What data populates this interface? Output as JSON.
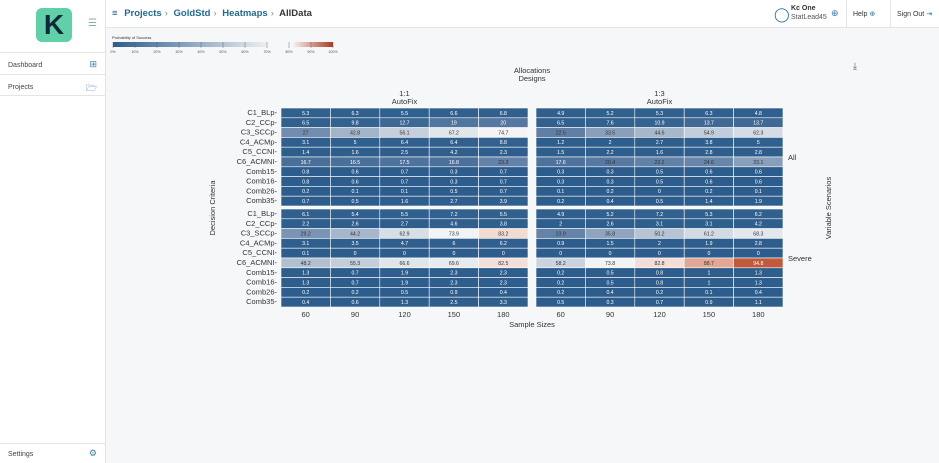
{
  "sidebar": {
    "logo": "K",
    "items": [
      {
        "label": "Dashboard",
        "icon": "grid-icon"
      },
      {
        "label": "Projects",
        "icon": "folder-icon"
      }
    ],
    "settings": "Settings"
  },
  "header": {
    "breadcrumb": [
      "Projects",
      "GoldStd",
      "Heatmaps",
      "AllData"
    ],
    "user_name": "Kc One",
    "user_role": "StatLead45",
    "help": "Help",
    "signout": "Sign Out"
  },
  "legend": {
    "title": "Probability of Success",
    "ticks": [
      "0%",
      "10%",
      "20%",
      "30%",
      "40%",
      "50%",
      "60%",
      "70%",
      "80%",
      "90%",
      "100%"
    ]
  },
  "chart_data": {
    "type": "heatmap",
    "title": "Allocations\nDesigns",
    "title_lines": [
      "Allocations",
      "Designs"
    ],
    "xlabel": "Sample Sizes",
    "ylabel": "Decision Criteria",
    "right_label": "Variable Scenarios",
    "colorscale": {
      "low": "#2d5d8c",
      "mid": "#f5f5f5",
      "high": "#a83a22",
      "range": [
        0,
        100
      ]
    },
    "columns": [
      {
        "label": "1:1",
        "sublabel": "AutoFix"
      },
      {
        "label": "1:3",
        "sublabel": "AutoFix"
      }
    ],
    "rows": [
      "All",
      "Severe"
    ],
    "x": [
      "60",
      "90",
      "120",
      "150",
      "180"
    ],
    "y": [
      "C1_BLp",
      "C2_CCp",
      "C3_SCCp",
      "C4_ACMp",
      "C5_CCNI",
      "C6_ACMNI",
      "Comb15",
      "Comb16",
      "Comb26",
      "Comb35"
    ],
    "panels": [
      {
        "column": "1:1",
        "row": "All",
        "values": [
          [
            5.3,
            6.3,
            5.5,
            6.6,
            6.8
          ],
          [
            6.5,
            9.8,
            12.7,
            19,
            20
          ],
          [
            27,
            42.8,
            56.1,
            67.2,
            74.7
          ],
          [
            3.1,
            5,
            6.4,
            6.4,
            8.8
          ],
          [
            1.4,
            1.6,
            2.5,
            4.2,
            2.3
          ],
          [
            16.7,
            16.5,
            17.5,
            16.8,
            23.3
          ],
          [
            0.8,
            0.6,
            0.7,
            0.3,
            0.7
          ],
          [
            0.8,
            0.6,
            0.7,
            0.3,
            0.7
          ],
          [
            0.2,
            0.1,
            0.1,
            0.5,
            0.7
          ],
          [
            0.7,
            0.5,
            1.6,
            2.7,
            3.9
          ]
        ]
      },
      {
        "column": "1:3",
        "row": "All",
        "values": [
          [
            4.9,
            5.2,
            5.3,
            6.3,
            4.8
          ],
          [
            6.5,
            7.6,
            10.9,
            13.7,
            13.7
          ],
          [
            22.5,
            33.5,
            44.6,
            54.9,
            62.3
          ],
          [
            1.2,
            2,
            2.7,
            3.8,
            5
          ],
          [
            1.5,
            2.2,
            1.6,
            2.8,
            2.8
          ],
          [
            17.6,
            20.4,
            23.2,
            24.6,
            33.1
          ],
          [
            0.3,
            0.3,
            0.5,
            0.6,
            0.6
          ],
          [
            0.3,
            0.3,
            0.5,
            0.6,
            0.6
          ],
          [
            0.1,
            0.2,
            0,
            0.2,
            0.1
          ],
          [
            0.2,
            0.4,
            0.5,
            1.4,
            1.9
          ]
        ]
      },
      {
        "column": "1:1",
        "row": "Severe",
        "values": [
          [
            6.1,
            5.4,
            5.5,
            7.2,
            5.5
          ],
          [
            2.2,
            2.6,
            2.7,
            4.6,
            3.8
          ],
          [
            29.2,
            44.2,
            62.9,
            73.9,
            83.2
          ],
          [
            3.1,
            3.5,
            4.7,
            6,
            6.2
          ],
          [
            0.1,
            0,
            0,
            0,
            0
          ],
          [
            48.2,
            55.3,
            66.6,
            69.6,
            82.5
          ],
          [
            1.3,
            0.7,
            1.9,
            2.3,
            2.3
          ],
          [
            1.3,
            0.7,
            1.9,
            2.3,
            2.3
          ],
          [
            0.2,
            0.2,
            0.5,
            0.9,
            0.4
          ],
          [
            0.4,
            0.6,
            1.3,
            2.5,
            3.3
          ]
        ]
      },
      {
        "column": "1:3",
        "row": "Severe",
        "values": [
          [
            4.9,
            5.2,
            7.2,
            5.3,
            6.2
          ],
          [
            2,
            2.6,
            3.1,
            3.1,
            4.2
          ],
          [
            23.9,
            35.8,
            50.2,
            61.2,
            68.3
          ],
          [
            0.9,
            1.5,
            2,
            1.9,
            2.8
          ],
          [
            0,
            0,
            0,
            0,
            0
          ],
          [
            58.2,
            73.8,
            82.8,
            88.7,
            94.8
          ],
          [
            0.2,
            0.5,
            0.8,
            1,
            1.3
          ],
          [
            0.2,
            0.5,
            0.8,
            1,
            1.3
          ],
          [
            0.2,
            0.4,
            0.2,
            0.1,
            0.4
          ],
          [
            0.5,
            0.3,
            0.7,
            0.9,
            1.1
          ]
        ]
      }
    ]
  }
}
